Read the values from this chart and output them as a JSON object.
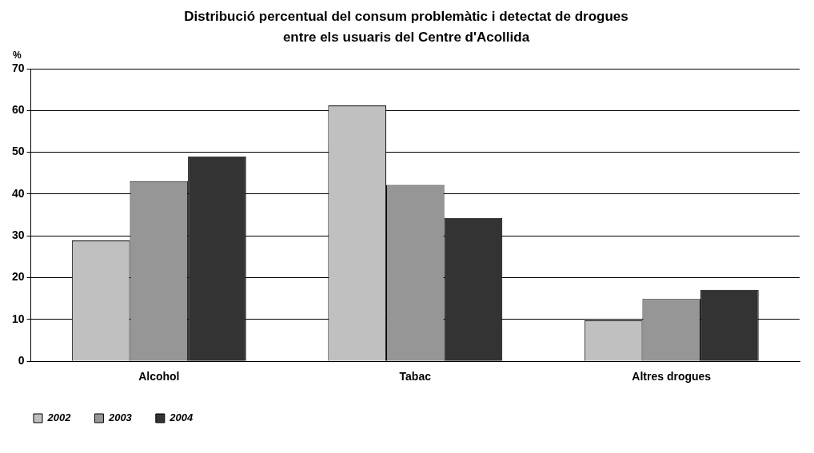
{
  "chart_data": {
    "type": "bar",
    "title": "Distribució percentual del consum problemàtic i detectat de drogues entre els usuaris del Centre d'Acollida",
    "ylabel": "%",
    "categories": [
      "Alcohol",
      "Tabac",
      "Altres drogues"
    ],
    "series": [
      {
        "name": "2002",
        "color": "#c0c0c0",
        "values": [
          28.9,
          61.2,
          9.8
        ]
      },
      {
        "name": "2003",
        "color": "#969696",
        "values": [
          43.1,
          42.2,
          14.9
        ]
      },
      {
        "name": "2004",
        "color": "#333333",
        "values": [
          49.0,
          34.3,
          17.1
        ]
      }
    ],
    "ylim": [
      0,
      70
    ],
    "yticks": [
      0,
      10,
      20,
      30,
      40,
      50,
      60,
      70
    ],
    "grid": "y",
    "legend": "bottom left"
  }
}
